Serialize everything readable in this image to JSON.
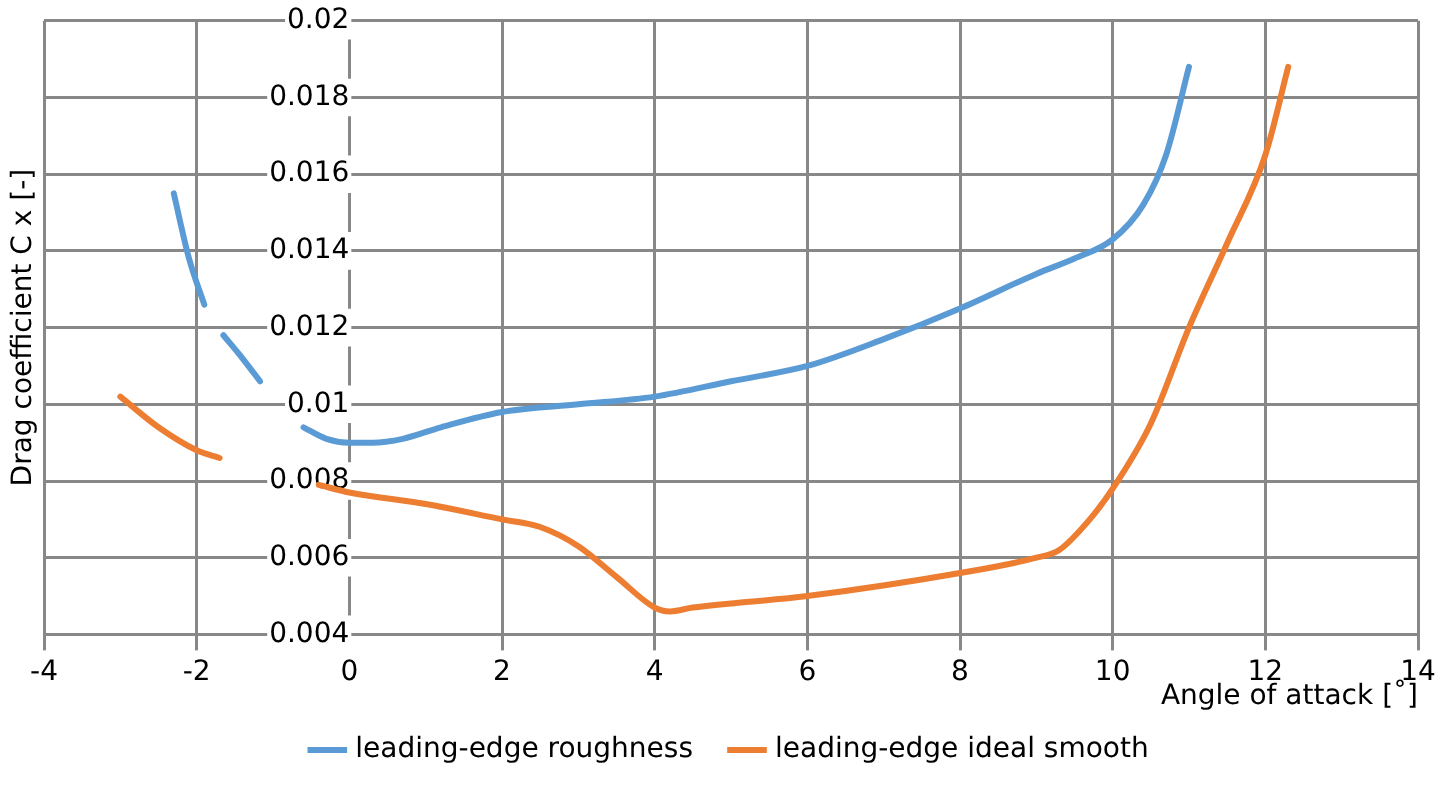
{
  "chart_data": {
    "type": "line",
    "xlabel": "Angle of attack [˚]",
    "ylabel": "Drag coefficient C x [-]",
    "xlim": [
      -4,
      14
    ],
    "xticks": [
      -4,
      -2,
      0,
      2,
      4,
      6,
      8,
      10,
      12,
      14
    ],
    "ylim": [
      0.004,
      0.02
    ],
    "yticks": [
      0.004,
      0.006,
      0.008,
      0.01,
      0.012,
      0.014,
      0.016,
      0.018,
      0.02
    ],
    "grid": true,
    "legend": "bottom",
    "marker": "none",
    "line_style": "solid",
    "series": [
      {
        "name": "leading-edge roughness",
        "color": "#5b9bd5",
        "x": [
          -2.3,
          -2.1,
          -1.9,
          -1.8,
          -1.65,
          -1.4,
          -1.17,
          -0.9,
          -0.6,
          -0.3,
          0,
          0.3,
          0.7,
          1.2,
          2,
          3,
          4,
          5,
          6,
          7,
          8,
          9,
          9.5,
          10,
          10.4,
          10.7,
          11
        ],
        "values": [
          0.0155,
          0.0138,
          0.0126,
          null,
          0.0118,
          0.0112,
          0.0106,
          null,
          0.0094,
          0.0091,
          0.009,
          0.009,
          0.0091,
          0.0094,
          0.0098,
          0.01,
          0.0102,
          0.0106,
          0.011,
          0.0117,
          0.0125,
          0.0134,
          0.0138,
          0.0143,
          0.0152,
          0.0165,
          0.0188
        ]
      },
      {
        "name": "leading-edge ideal smooth",
        "color": "#ed7d31",
        "x": [
          -3,
          -2.5,
          -2,
          -1.7,
          -1,
          -0.4,
          0,
          1,
          2,
          2.5,
          3,
          3.5,
          4,
          4.2,
          4.5,
          6,
          8,
          9,
          9.3,
          9.7,
          10,
          10.5,
          11,
          11.5,
          12,
          12.3
        ],
        "values": [
          0.0102,
          0.0094,
          0.0088,
          0.0086,
          null,
          0.0079,
          0.0077,
          0.0074,
          0.007,
          0.0068,
          0.0063,
          0.0055,
          0.0047,
          0.0046,
          0.0047,
          0.005,
          0.0056,
          0.006,
          0.0062,
          0.007,
          0.0078,
          0.0095,
          0.012,
          0.0142,
          0.0165,
          0.0188
        ]
      }
    ]
  }
}
